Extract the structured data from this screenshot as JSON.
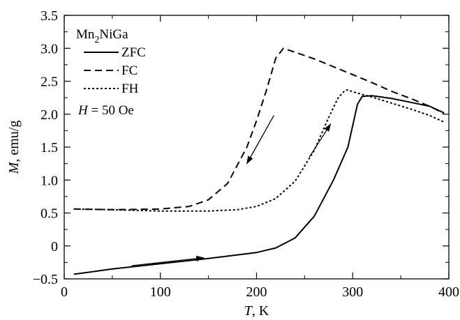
{
  "chart_data": {
    "type": "line",
    "xlabel": "T, K",
    "ylabel": "M, emu/g",
    "xlim": [
      0,
      400
    ],
    "ylim": [
      -0.5,
      3.5
    ],
    "xticks": [
      0,
      100,
      200,
      300,
      400
    ],
    "xtick_labels": [
      "0",
      "100",
      "200",
      "300",
      "400"
    ],
    "yticks": [
      -0.5,
      0,
      0.5,
      1.0,
      1.5,
      2.0,
      2.5,
      3.0,
      3.5
    ],
    "ytick_labels": [
      "−0.5",
      "0",
      "0.5",
      "1.0",
      "1.5",
      "2.0",
      "2.5",
      "3.0",
      "3.5"
    ],
    "grid": false,
    "legend_position": "top-left",
    "legend_title": "Mn2NiGa",
    "annotation": "H = 50 Oe",
    "series": [
      {
        "name": "ZFC",
        "style": "solid",
        "x": [
          10,
          50,
          100,
          150,
          200,
          220,
          240,
          260,
          280,
          295,
          305,
          310,
          320,
          340,
          360,
          380,
          395
        ],
        "y": [
          -0.43,
          -0.35,
          -0.27,
          -0.19,
          -0.1,
          -0.03,
          0.12,
          0.45,
          1.0,
          1.5,
          2.15,
          2.27,
          2.28,
          2.24,
          2.18,
          2.12,
          2.02
        ]
      },
      {
        "name": "FC",
        "style": "dashed",
        "x": [
          10,
          50,
          100,
          130,
          150,
          170,
          190,
          200,
          210,
          220,
          228,
          240,
          260,
          280,
          300,
          320,
          340,
          360,
          380,
          395
        ],
        "y": [
          0.56,
          0.55,
          0.56,
          0.6,
          0.7,
          0.95,
          1.5,
          1.9,
          2.35,
          2.85,
          3.0,
          2.94,
          2.84,
          2.72,
          2.6,
          2.48,
          2.35,
          2.24,
          2.12,
          2.01
        ]
      },
      {
        "name": "FH",
        "style": "dotted",
        "x": [
          10,
          50,
          100,
          150,
          180,
          200,
          220,
          240,
          260,
          275,
          285,
          292,
          295,
          300,
          320,
          340,
          360,
          380,
          395
        ],
        "y": [
          0.56,
          0.55,
          0.53,
          0.53,
          0.55,
          0.6,
          0.72,
          0.98,
          1.45,
          1.95,
          2.25,
          2.36,
          2.37,
          2.34,
          2.26,
          2.17,
          2.08,
          1.98,
          1.88
        ]
      }
    ],
    "arrows": [
      {
        "from": [
          218,
          1.98
        ],
        "to": [
          190,
          1.25
        ]
      },
      {
        "from": [
          255,
          1.35
        ],
        "to": [
          277,
          1.85
        ]
      },
      {
        "from": [
          70,
          -0.3
        ],
        "to": [
          145,
          -0.18
        ]
      }
    ]
  }
}
